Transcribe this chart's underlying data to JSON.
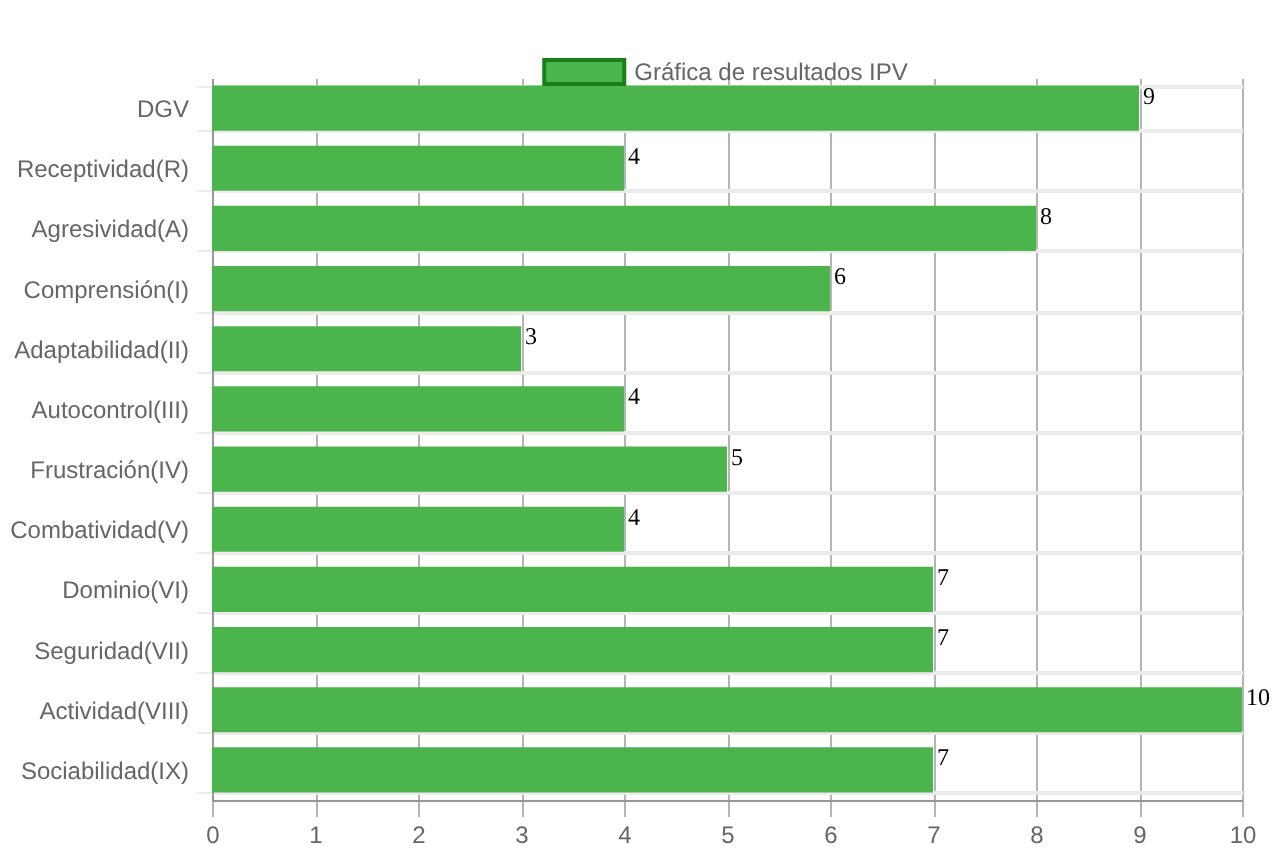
{
  "chart_data": {
    "type": "bar",
    "orientation": "horizontal",
    "categories": [
      "DGV",
      "Receptividad(R)",
      "Agresividad(A)",
      "Comprensión(I)",
      "Adaptabilidad(II)",
      "Autocontrol(III)",
      "Frustración(IV)",
      "Combatividad(V)",
      "Dominio(VI)",
      "Seguridad(VII)",
      "Actividad(VIII)",
      "Sociabilidad(IX)"
    ],
    "series": [
      {
        "name": "Gráfica de resultados IPV",
        "color": "#4cb44c",
        "values": [
          9,
          4,
          8,
          6,
          3,
          4,
          5,
          4,
          7,
          7,
          10,
          7
        ]
      }
    ],
    "xlim": [
      0,
      10
    ],
    "xticks": [
      0,
      1,
      2,
      3,
      4,
      5,
      6,
      7,
      8,
      9,
      10
    ],
    "grid": true,
    "legend": "top",
    "data_labels": true
  }
}
